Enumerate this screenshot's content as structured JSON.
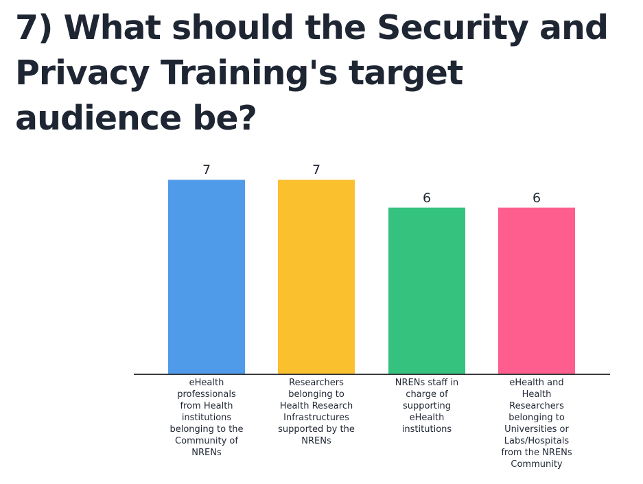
{
  "header": {
    "title": "7) What should the Security and Privacy Training's target audience be?"
  },
  "chart_data": {
    "type": "bar",
    "title": "7) What should the Security and Privacy Training's target audience be?",
    "xlabel": "",
    "ylabel": "",
    "categories": [
      "eHealth professionals from Health institutions belonging to the Community of NRENs",
      "Researchers belonging to Health Research Infrastructures supported by the NRENs",
      "NRENs staff in charge of supporting eHealth institutions",
      "eHealth and Health Researchers belonging to Universities or Labs/Hospitals from the NRENs Community"
    ],
    "values": [
      7,
      7,
      6,
      6
    ],
    "colors": [
      "#4f9bea",
      "#fbc02d",
      "#34c27e",
      "#fd5e8d"
    ],
    "ylim": [
      0,
      7.4
    ],
    "grid": false,
    "legend": "none",
    "axis_color": "#37393d"
  }
}
